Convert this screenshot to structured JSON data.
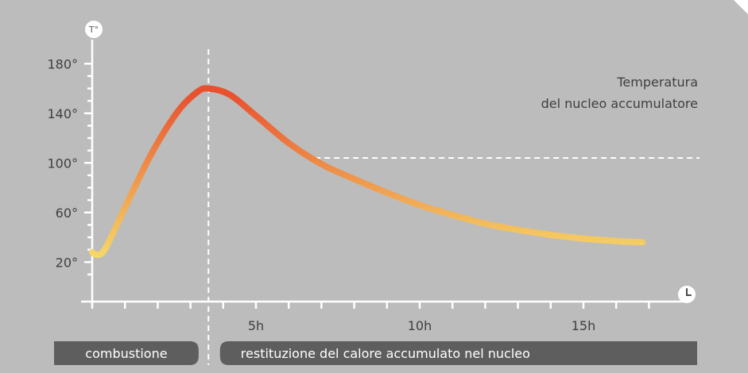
{
  "colors": {
    "background": "#bcbcbc",
    "axis": "#ffffff",
    "phase_bar": "#5e5e5e",
    "curve_hot": "#e8502e",
    "curve_cool": "#f6dc6a",
    "text": "#3f3f3f"
  },
  "icons": {
    "y_axis": "temperature-badge",
    "x_axis": "clock-icon"
  },
  "chart_data": {
    "type": "line",
    "title": "",
    "ylabel": "T°",
    "xlabel": "",
    "ylim": [
      0,
      190
    ],
    "xlim": [
      0,
      17
    ],
    "y_ticks": [
      {
        "value": 20,
        "label": "20°"
      },
      {
        "value": 60,
        "label": "60°"
      },
      {
        "value": 100,
        "label": "100°"
      },
      {
        "value": 140,
        "label": "140°"
      },
      {
        "value": 180,
        "label": "180°"
      }
    ],
    "x_ticks": [
      {
        "value": 5,
        "label": "5h"
      },
      {
        "value": 10,
        "label": "10h"
      },
      {
        "value": 15,
        "label": "15h"
      }
    ],
    "legend": {
      "line1": "Temperatura",
      "line2": "del nucleo accumulatore",
      "position": "top-right"
    },
    "series": [
      {
        "values": [
          {
            "x": 0.0,
            "y": 28
          },
          {
            "x": 0.15,
            "y": 26
          },
          {
            "x": 0.4,
            "y": 31
          },
          {
            "x": 1.0,
            "y": 64
          },
          {
            "x": 1.8,
            "y": 107
          },
          {
            "x": 2.6,
            "y": 141
          },
          {
            "x": 3.2,
            "y": 157
          },
          {
            "x": 3.55,
            "y": 160
          },
          {
            "x": 4.2,
            "y": 155
          },
          {
            "x": 5.0,
            "y": 138
          },
          {
            "x": 6.0,
            "y": 116
          },
          {
            "x": 7.0,
            "y": 99
          },
          {
            "x": 8.0,
            "y": 87
          },
          {
            "x": 9.0,
            "y": 76
          },
          {
            "x": 10.0,
            "y": 66
          },
          {
            "x": 11.0,
            "y": 58
          },
          {
            "x": 12.0,
            "y": 51
          },
          {
            "x": 13.0,
            "y": 46
          },
          {
            "x": 14.0,
            "y": 42
          },
          {
            "x": 15.0,
            "y": 39
          },
          {
            "x": 16.0,
            "y": 37
          },
          {
            "x": 16.8,
            "y": 36
          }
        ]
      }
    ],
    "reference_lines": [
      {
        "orientation": "vertical",
        "x": 3.55
      },
      {
        "orientation": "horizontal",
        "y": 104,
        "x_from": 6.8
      }
    ]
  },
  "phases": [
    {
      "label": "combustione",
      "x_from": 0,
      "x_to": 3.2
    },
    {
      "label": "restituzione del calore accumulato nel nucleo",
      "x_from": 4.0,
      "x_to": 18.7
    }
  ]
}
